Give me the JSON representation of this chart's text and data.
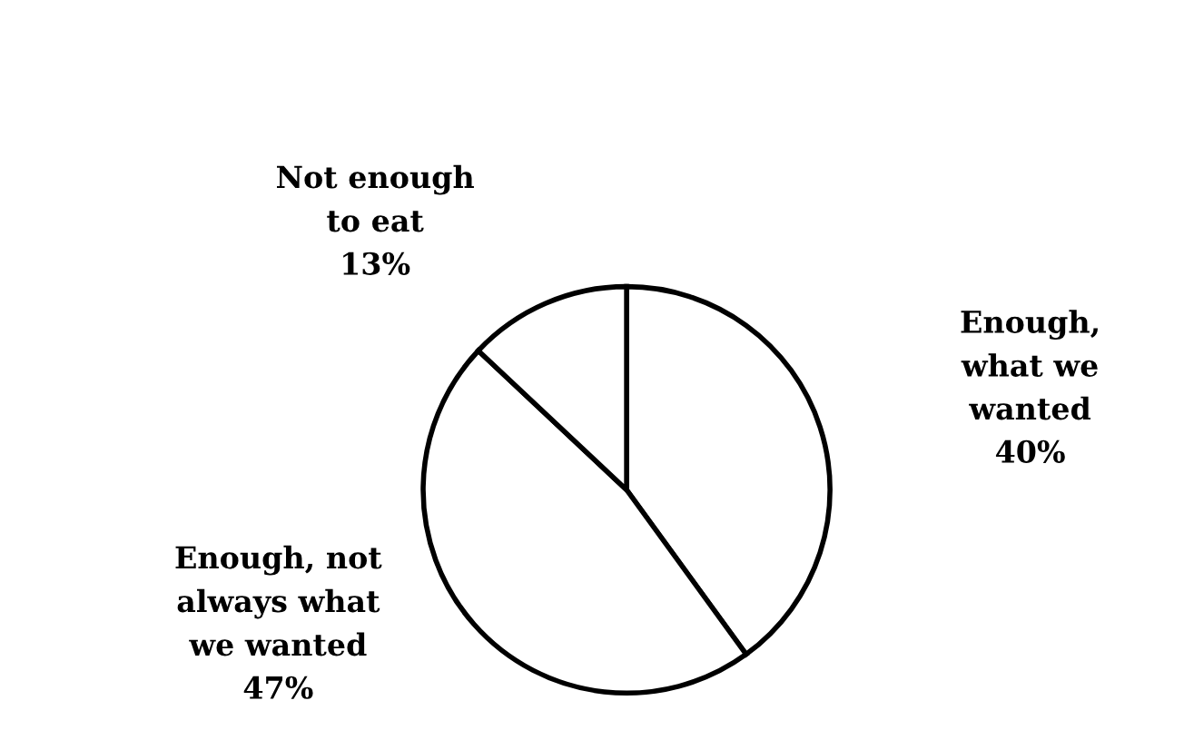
{
  "chart_data": {
    "type": "pie",
    "categories": [
      "Enough,\nwhat we\nwanted",
      "Enough, not\nalways what\nwe wanted",
      "Not enough\nto eat"
    ],
    "values": [
      40,
      47,
      13
    ],
    "value_labels": [
      "40%",
      "47%",
      "13%"
    ],
    "colors": [
      "#ffffff",
      "#ffffff",
      "#ffffff"
    ]
  }
}
